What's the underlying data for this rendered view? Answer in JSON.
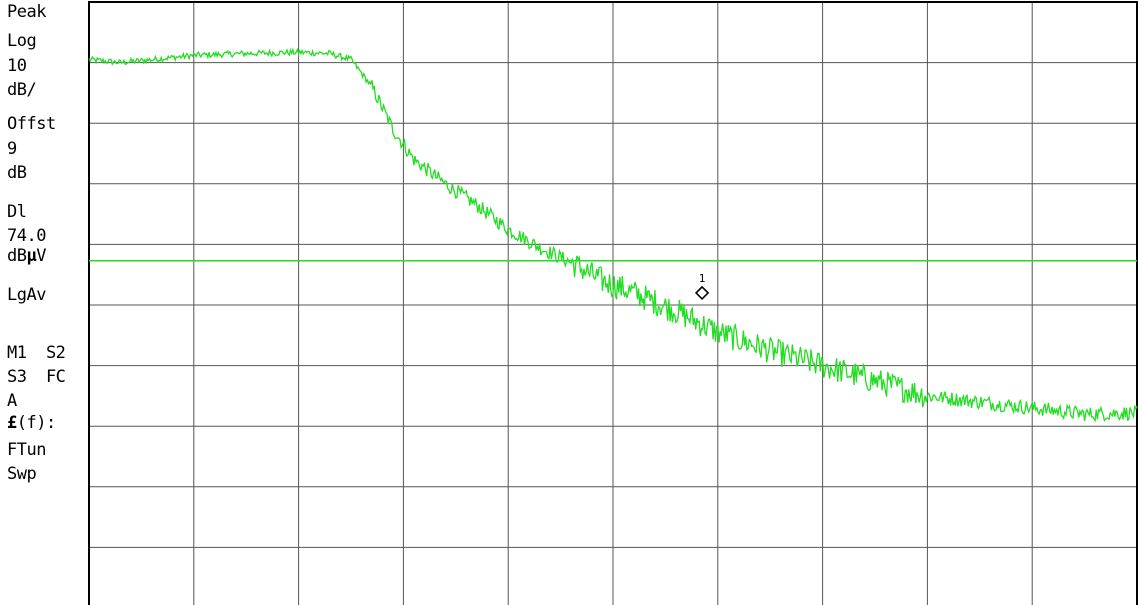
{
  "annotations": {
    "detector": "Peak",
    "scale_type": "Log",
    "scale_value": "10",
    "scale_unit": "dB/",
    "offset_label": "Offst",
    "offset_value": "9",
    "offset_unit": "dB",
    "display_line_label": "Dl",
    "display_line_value": "74.0",
    "display_line_unit_prefix": "dB",
    "display_line_unit_mu": "µ",
    "display_line_unit_suffix": "V",
    "averaging": "LgAv",
    "trace_modes_1": "M1  S2",
    "trace_modes_2": "S3  FC",
    "trace_modes_3": "A",
    "function_symbol": "£",
    "function_text": "(f):",
    "function_line_2": "FTun",
    "function_line_3": "Swp"
  },
  "colors": {
    "trace": "#22dd22",
    "display_line": "#22dd22",
    "grid": "#555555",
    "frame": "#000000",
    "marker": "#000000",
    "background": "#ffffff"
  },
  "chart_data": {
    "type": "line",
    "title": "",
    "xlabel": "",
    "ylabel": "",
    "x_divisions": 10,
    "y_divisions": 10,
    "xlim": [
      0,
      10
    ],
    "ylim": [
      -10,
      0
    ],
    "grid": true,
    "display_line_level_div": -4.27,
    "series": [
      {
        "x": [
          0,
          0.3,
          0.6,
          1.0,
          1.5,
          2.0,
          2.3,
          2.5,
          2.7,
          2.9,
          3.1,
          3.4,
          3.7,
          4.0,
          4.3,
          4.6,
          4.9,
          5.2,
          5.6,
          6.0,
          6.5,
          7.0,
          7.5,
          8.0,
          8.5,
          9.0,
          9.5,
          10.0
        ],
        "y": [
          -0.95,
          -1.0,
          -0.95,
          -0.88,
          -0.85,
          -0.83,
          -0.85,
          -0.95,
          -1.4,
          -2.1,
          -2.6,
          -3.0,
          -3.35,
          -3.75,
          -4.05,
          -4.3,
          -4.6,
          -4.8,
          -5.1,
          -5.45,
          -5.75,
          -6.0,
          -6.25,
          -6.5,
          -6.6,
          -6.7,
          -6.8,
          -6.78
        ]
      }
    ],
    "markers": [
      {
        "label": "1",
        "x": 5.85,
        "y": -4.8
      }
    ]
  }
}
